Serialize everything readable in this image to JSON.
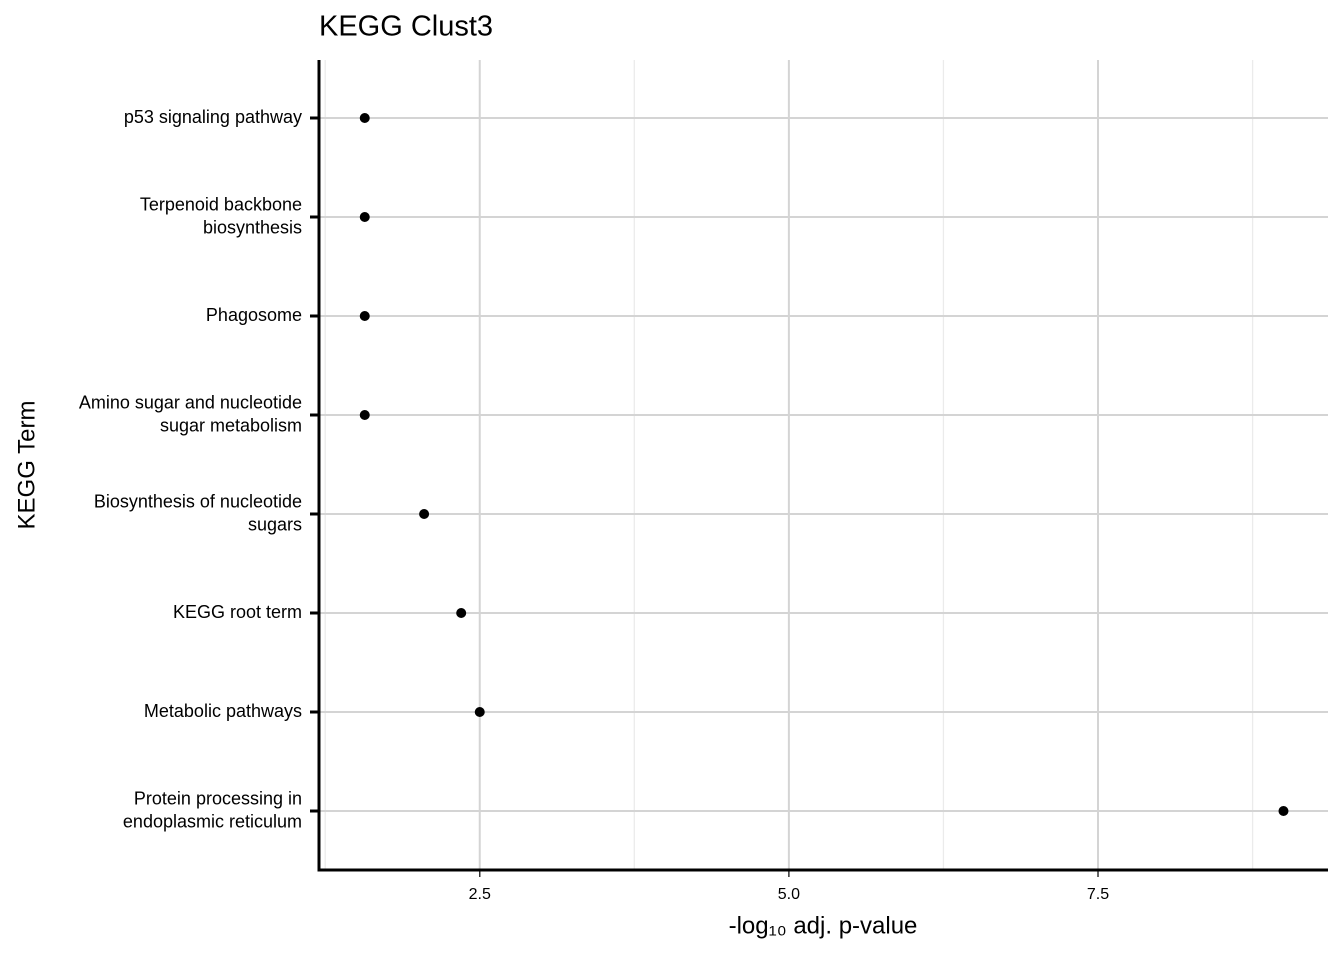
{
  "chart_data": {
    "type": "dot",
    "title": "KEGG Clust3",
    "x_label": "-log₁₀ adj. p-value",
    "y_label": "KEGG Term",
    "categories": [
      "p53 signaling pathway",
      "Terpenoid backbone\nbiosynthesis",
      "Phagosome",
      "Amino sugar and nucleotide\nsugar metabolism",
      "Biosynthesis of nucleotide\nsugars",
      "KEGG root term",
      "Metabolic pathways",
      "Protein processing in\nendoplasmic reticulum"
    ],
    "values": [
      1.57,
      1.57,
      1.57,
      1.57,
      2.05,
      2.35,
      2.5,
      9.0
    ],
    "color": "#000000",
    "xlim": [
      1.2,
      9.36
    ],
    "xticks": [
      {
        "value": 2.5,
        "label": "2.5"
      },
      {
        "value": 5,
        "label": "5.0"
      },
      {
        "value": 7.5,
        "label": "7.5"
      }
    ],
    "grid": true
  }
}
